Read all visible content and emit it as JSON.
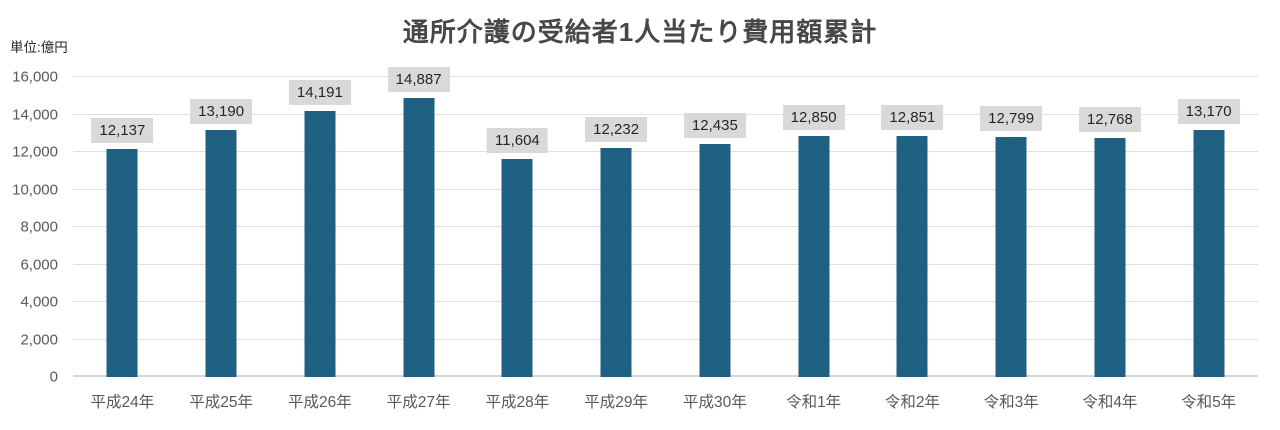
{
  "title": "通所介護の受給者1人当たり費用額累計",
  "unit_label": "単位:億円",
  "colors": {
    "bar": "#1E6082",
    "value_label_bg": "#D9D9D9",
    "value_label_text": "#262626",
    "gridline": "#E0E0E0",
    "axis_line": "#D6D6D6",
    "title_text": "#474747",
    "tick_text": "#595959"
  },
  "chart_data": {
    "type": "bar",
    "title": "通所介護の受給者1人当たり費用額累計",
    "unit": "単位:億円",
    "xlabel": "",
    "ylabel": "",
    "categories": [
      "平成24年",
      "平成25年",
      "平成26年",
      "平成27年",
      "平成28年",
      "平成29年",
      "平成30年",
      "令和1年",
      "令和2年",
      "令和3年",
      "令和4年",
      "令和5年"
    ],
    "values": [
      12137,
      13190,
      14191,
      14887,
      11604,
      12232,
      12435,
      12850,
      12851,
      12799,
      12768,
      13170
    ],
    "value_labels": [
      "12,137",
      "13,190",
      "14,191",
      "14,887",
      "11,604",
      "12,232",
      "12,435",
      "12,850",
      "12,851",
      "12,799",
      "12,768",
      "13,170"
    ],
    "ylim": [
      0,
      16000
    ],
    "ytick_step": 2000,
    "ytick_labels": [
      "0",
      "2,000",
      "4,000",
      "6,000",
      "8,000",
      "10,000",
      "12,000",
      "14,000",
      "16,000"
    ],
    "grid": true,
    "legend_position": "none",
    "data_labels": "above-bars-with-background"
  }
}
